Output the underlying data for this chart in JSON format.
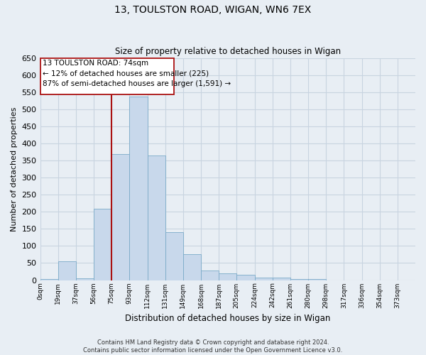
{
  "title": "13, TOULSTON ROAD, WIGAN, WN6 7EX",
  "subtitle": "Size of property relative to detached houses in Wigan",
  "xlabel": "Distribution of detached houses by size in Wigan",
  "ylabel": "Number of detached properties",
  "bar_color": "#c8d8eb",
  "bar_edge_color": "#7aaac8",
  "bin_labels": [
    "0sqm",
    "19sqm",
    "37sqm",
    "56sqm",
    "75sqm",
    "93sqm",
    "112sqm",
    "131sqm",
    "149sqm",
    "168sqm",
    "187sqm",
    "205sqm",
    "224sqm",
    "242sqm",
    "261sqm",
    "280sqm",
    "298sqm",
    "317sqm",
    "336sqm",
    "354sqm",
    "373sqm"
  ],
  "bar_heights": [
    3,
    55,
    5,
    210,
    370,
    537,
    365,
    140,
    75,
    28,
    20,
    15,
    8,
    8,
    3,
    3,
    0,
    0,
    0,
    0,
    0
  ],
  "ylim": [
    0,
    650
  ],
  "yticks": [
    0,
    50,
    100,
    150,
    200,
    250,
    300,
    350,
    400,
    450,
    500,
    550,
    600,
    650
  ],
  "property_line_bar_index": 4,
  "property_line_color": "#aa1111",
  "annotation_text_line1": "13 TOULSTON ROAD: 74sqm",
  "annotation_text_line2": "← 12% of detached houses are smaller (225)",
  "annotation_text_line3": "87% of semi-detached houses are larger (1,591) →",
  "footer_line1": "Contains HM Land Registry data © Crown copyright and database right 2024.",
  "footer_line2": "Contains public sector information licensed under the Open Government Licence v3.0.",
  "grid_color": "#c8d4e0",
  "background_color": "#e8eef4"
}
